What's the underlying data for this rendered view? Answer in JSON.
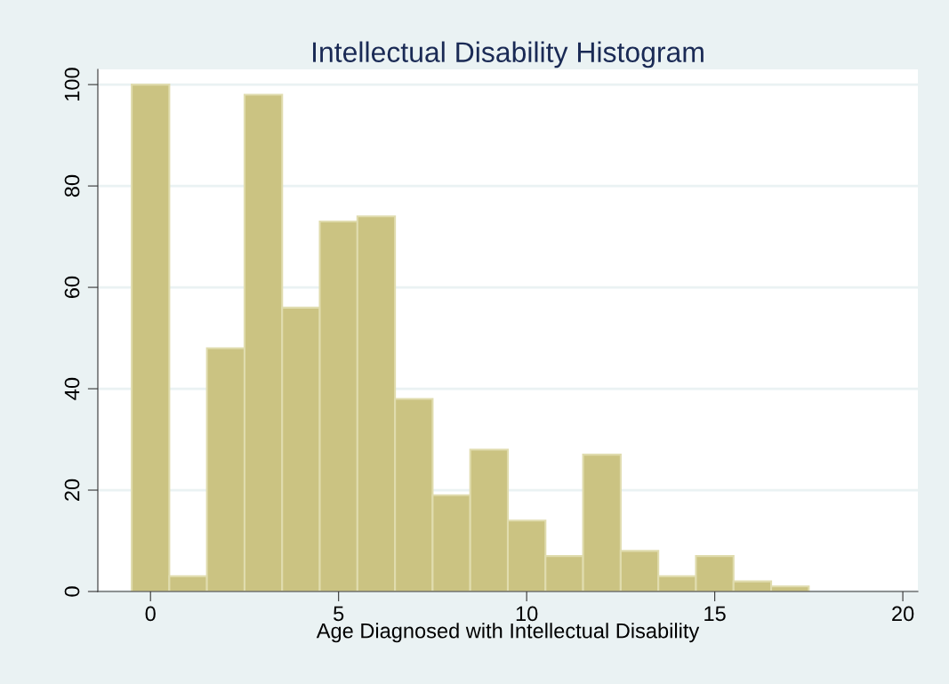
{
  "chart_data": {
    "type": "histogram",
    "title": "Intellectual Disability Histogram",
    "xlabel": "Age Diagnosed with Intellectual Disability",
    "bins": [
      -0.5,
      0.5,
      1.5,
      2.5,
      3.5,
      4.5,
      5.5,
      6.5,
      7.5,
      8.5,
      9.5,
      10.5,
      11.5,
      12.5,
      13.5,
      14.5,
      15.5,
      16.5,
      17.5
    ],
    "values": [
      100,
      3,
      48,
      98,
      56,
      73,
      74,
      38,
      19,
      28,
      14,
      7,
      27,
      8,
      3,
      7,
      2,
      1
    ],
    "color": "#cbc382",
    "xlim": [
      -1.4,
      20.4
    ],
    "xticks": [
      0,
      5,
      10,
      15,
      20
    ],
    "ylim": [
      0,
      103
    ],
    "yticks": [
      0,
      20,
      40,
      60,
      80,
      100
    ],
    "grid": "y"
  }
}
